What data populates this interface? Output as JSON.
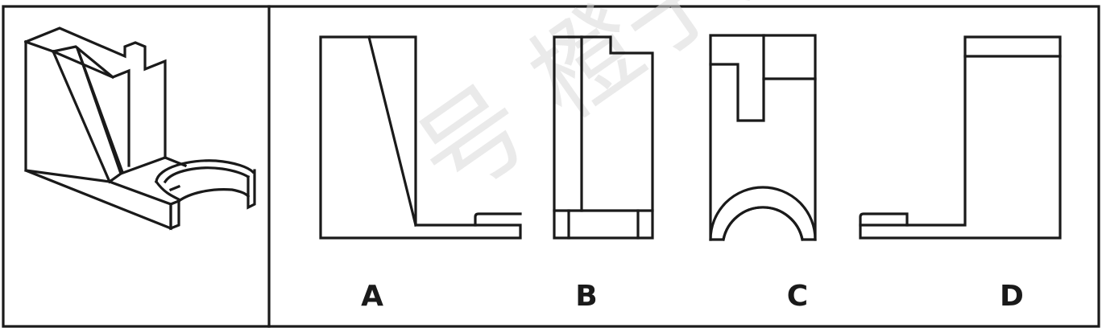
{
  "options": [
    {
      "key": "a",
      "label": "A"
    },
    {
      "key": "b",
      "label": "B"
    },
    {
      "key": "c",
      "label": "C"
    },
    {
      "key": "d",
      "label": "D"
    }
  ],
  "watermark": "号 橙子为",
  "colors": {
    "line": "#1a1a1a",
    "background": "#ffffff",
    "watermark": "#d9d9d9"
  }
}
